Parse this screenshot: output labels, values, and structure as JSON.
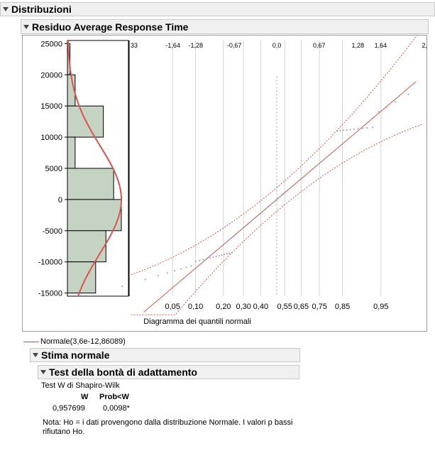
{
  "headers": {
    "distribuzioni": "Distribuzioni",
    "residuo": "Residuo Average Response Time",
    "stima": "Stima normale",
    "test": "Test della bontà di adattamento"
  },
  "chart_data": {
    "type": "histogram+normal-quantile",
    "y_ticks": [
      "25000",
      "20000",
      "15000",
      "10000",
      "5000",
      "0",
      "-5000",
      "-10000",
      "-15000"
    ],
    "ylim": [
      -15500,
      25500
    ],
    "histogram_bins": [
      {
        "from": 20000,
        "to": 25000,
        "count": 1
      },
      {
        "from": 15000,
        "to": 20000,
        "count": 3
      },
      {
        "from": 10000,
        "to": 15000,
        "count": 14
      },
      {
        "from": 5000,
        "to": 10000,
        "count": 3
      },
      {
        "from": 0,
        "to": 5000,
        "count": 18
      },
      {
        "from": -5000,
        "to": 0,
        "count": 21
      },
      {
        "from": -10000,
        "to": -5000,
        "count": 15
      },
      {
        "from": -15000,
        "to": -10000,
        "count": 11
      }
    ],
    "top_ticks": [
      "33",
      "-1,64",
      "-1,28",
      "-0,67",
      "0,0",
      "0,67",
      "1,28",
      "1,64",
      "2,"
    ],
    "bottom_ticks": [
      "0,05",
      "0,10",
      "0,20",
      "0,30",
      "0,40",
      "0,55",
      "0,65",
      "0,75",
      "0,85",
      "0,95"
    ],
    "xlabel": "Diagramma dei quantili normali",
    "legend": "Normale(3,6e-12,86089)",
    "colors": {
      "fit": "#d9534f",
      "bar_fill": "#c5d3c2",
      "points": "#9a9a9a"
    }
  },
  "test": {
    "name": "Test W di Shapiro-Wilk",
    "col_w": "W",
    "col_p": "Prob<W",
    "w_value": "0,957699",
    "p_value": "0,0098*",
    "note": "Nota: Ho = i dati provengono dalla distribuzione Normale. I valori p bassi rifiutano Ho."
  }
}
